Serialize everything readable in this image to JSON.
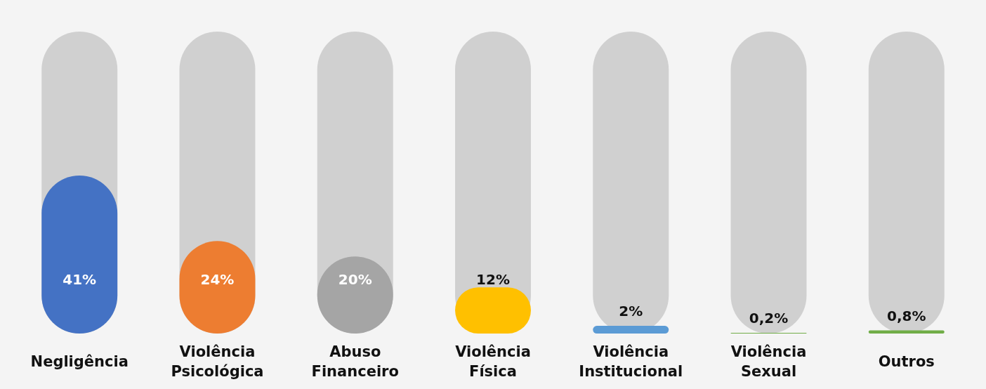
{
  "chart_data": {
    "type": "bar",
    "categories": [
      "Negligência",
      "Violência Psicológica",
      "Abuso Financeiro",
      "Violência Física",
      "Violência Institucional",
      "Violência Sexual",
      "Outros"
    ],
    "values": [
      41,
      24,
      20,
      12,
      2,
      0.2,
      0.8
    ],
    "value_labels": [
      "41%",
      "24%",
      "20%",
      "12%",
      "2%",
      "0,2%",
      "0,8%"
    ],
    "colors": [
      "#4472c4",
      "#ed7d31",
      "#a5a5a5",
      "#ffc000",
      "#5b9bd5",
      "#70ad47",
      "#70ad47"
    ]
  }
}
